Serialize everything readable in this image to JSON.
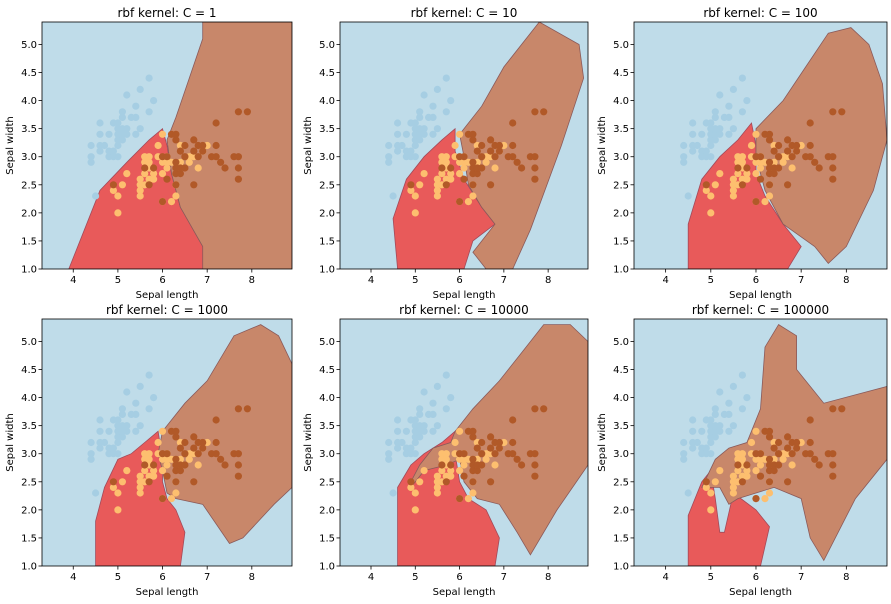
{
  "chart_data": [
    {
      "type": "scatter",
      "title": "rbf kernel: C = 1",
      "xlabel": "Sepal length",
      "ylabel": "Sepal width",
      "xlim": [
        3.3,
        8.9
      ],
      "ylim": [
        1.0,
        5.4
      ],
      "xticks": [
        "4",
        "5",
        "6",
        "7",
        "8"
      ],
      "yticks": [
        "1.0",
        "1.5",
        "2.0",
        "2.5",
        "3.0",
        "3.5",
        "4.0",
        "4.5",
        "5.0"
      ]
    },
    {
      "type": "scatter",
      "title": "rbf kernel: C = 10",
      "xlabel": "Sepal length",
      "ylabel": "Sepal width",
      "xlim": [
        3.3,
        8.9
      ],
      "ylim": [
        1.0,
        5.4
      ],
      "xticks": [
        "4",
        "5",
        "6",
        "7",
        "8"
      ],
      "yticks": [
        "1.0",
        "1.5",
        "2.0",
        "2.5",
        "3.0",
        "3.5",
        "4.0",
        "4.5",
        "5.0"
      ]
    },
    {
      "type": "scatter",
      "title": "rbf kernel: C = 100",
      "xlabel": "Sepal length",
      "ylabel": "Sepal width",
      "xlim": [
        3.3,
        8.9
      ],
      "ylim": [
        1.0,
        5.4
      ],
      "xticks": [
        "4",
        "5",
        "6",
        "7",
        "8"
      ],
      "yticks": [
        "1.0",
        "1.5",
        "2.0",
        "2.5",
        "3.0",
        "3.5",
        "4.0",
        "4.5",
        "5.0"
      ]
    },
    {
      "type": "scatter",
      "title": "rbf kernel: C = 1000",
      "xlabel": "Sepal length",
      "ylabel": "Sepal width",
      "xlim": [
        3.3,
        8.9
      ],
      "ylim": [
        1.0,
        5.4
      ],
      "xticks": [
        "4",
        "5",
        "6",
        "7",
        "8"
      ],
      "yticks": [
        "1.0",
        "1.5",
        "2.0",
        "2.5",
        "3.0",
        "3.5",
        "4.0",
        "4.5",
        "5.0"
      ]
    },
    {
      "type": "scatter",
      "title": "rbf kernel: C = 10000",
      "xlabel": "Sepal length",
      "ylabel": "Sepal width",
      "xlim": [
        3.3,
        8.9
      ],
      "ylim": [
        1.0,
        5.4
      ],
      "xticks": [
        "4",
        "5",
        "6",
        "7",
        "8"
      ],
      "yticks": [
        "1.0",
        "1.5",
        "2.0",
        "2.5",
        "3.0",
        "3.5",
        "4.0",
        "4.5",
        "5.0"
      ]
    },
    {
      "type": "scatter",
      "title": "rbf kernel: C = 100000",
      "xlabel": "Sepal length",
      "ylabel": "Sepal width",
      "xlim": [
        3.3,
        8.9
      ],
      "ylim": [
        1.0,
        5.4
      ],
      "xticks": [
        "4",
        "5",
        "6",
        "7",
        "8"
      ],
      "yticks": [
        "1.0",
        "1.5",
        "2.0",
        "2.5",
        "3.0",
        "3.5",
        "4.0",
        "4.5",
        "5.0"
      ]
    }
  ],
  "colors": {
    "background_region": "#bfdce9",
    "class_0_region": "#bfdce9",
    "class_1_region": "#e85a5a",
    "class_2_region": "#c8876a",
    "class_0_points": "#a6cee3",
    "class_1_points": "#fdbf6f",
    "class_2_points": "#b15928",
    "axis": "#000000"
  },
  "points": {
    "class_0": [
      [
        4.5,
        2.3
      ],
      [
        4.4,
        2.9
      ],
      [
        4.4,
        3.0
      ],
      [
        4.4,
        3.2
      ],
      [
        4.6,
        3.1
      ],
      [
        4.6,
        3.2
      ],
      [
        4.6,
        3.4
      ],
      [
        4.6,
        3.6
      ],
      [
        4.7,
        3.2
      ],
      [
        4.8,
        3.0
      ],
      [
        4.8,
        3.1
      ],
      [
        4.8,
        3.4
      ],
      [
        4.9,
        3.0
      ],
      [
        4.9,
        3.1
      ],
      [
        4.9,
        3.6
      ],
      [
        5.0,
        3.0
      ],
      [
        5.0,
        3.2
      ],
      [
        5.0,
        3.3
      ],
      [
        5.0,
        3.4
      ],
      [
        5.0,
        3.5
      ],
      [
        5.0,
        3.6
      ],
      [
        5.1,
        3.3
      ],
      [
        5.1,
        3.4
      ],
      [
        5.1,
        3.5
      ],
      [
        5.1,
        3.7
      ],
      [
        5.1,
        3.8
      ],
      [
        5.2,
        3.4
      ],
      [
        5.2,
        3.5
      ],
      [
        5.2,
        4.1
      ],
      [
        5.3,
        3.7
      ],
      [
        5.4,
        3.4
      ],
      [
        5.4,
        3.7
      ],
      [
        5.4,
        3.9
      ],
      [
        5.5,
        3.5
      ],
      [
        5.5,
        4.2
      ],
      [
        5.7,
        3.8
      ],
      [
        5.7,
        4.4
      ],
      [
        5.8,
        4.0
      ]
    ],
    "class_1": [
      [
        4.9,
        2.4
      ],
      [
        5.0,
        2.0
      ],
      [
        5.0,
        2.3
      ],
      [
        5.1,
        2.5
      ],
      [
        5.2,
        2.7
      ],
      [
        5.5,
        2.3
      ],
      [
        5.5,
        2.4
      ],
      [
        5.5,
        2.5
      ],
      [
        5.5,
        2.6
      ],
      [
        5.6,
        2.5
      ],
      [
        5.6,
        2.7
      ],
      [
        5.6,
        2.9
      ],
      [
        5.6,
        3.0
      ],
      [
        5.7,
        2.6
      ],
      [
        5.7,
        2.8
      ],
      [
        5.7,
        2.9
      ],
      [
        5.7,
        3.0
      ],
      [
        5.8,
        2.6
      ],
      [
        5.8,
        2.7
      ],
      [
        5.9,
        3.0
      ],
      [
        5.9,
        3.2
      ],
      [
        6.0,
        2.2
      ],
      [
        6.0,
        2.7
      ],
      [
        6.0,
        2.9
      ],
      [
        6.0,
        3.4
      ],
      [
        6.1,
        2.8
      ],
      [
        6.1,
        2.9
      ],
      [
        6.1,
        3.0
      ],
      [
        6.2,
        2.2
      ],
      [
        6.2,
        2.9
      ],
      [
        6.3,
        2.3
      ],
      [
        6.3,
        2.5
      ],
      [
        6.4,
        2.9
      ],
      [
        6.4,
        3.2
      ],
      [
        6.6,
        2.9
      ],
      [
        6.6,
        3.0
      ],
      [
        6.7,
        3.0
      ],
      [
        6.8,
        2.8
      ],
      [
        6.9,
        3.1
      ],
      [
        7.0,
        3.2
      ]
    ],
    "class_2": [
      [
        4.9,
        2.5
      ],
      [
        5.6,
        2.8
      ],
      [
        5.7,
        2.5
      ],
      [
        5.8,
        2.8
      ],
      [
        6.0,
        2.2
      ],
      [
        6.0,
        3.0
      ],
      [
        6.1,
        2.6
      ],
      [
        6.1,
        3.0
      ],
      [
        6.2,
        3.4
      ],
      [
        6.3,
        2.5
      ],
      [
        6.3,
        2.7
      ],
      [
        6.3,
        2.8
      ],
      [
        6.3,
        2.9
      ],
      [
        6.3,
        3.3
      ],
      [
        6.3,
        3.4
      ],
      [
        6.4,
        2.7
      ],
      [
        6.4,
        2.8
      ],
      [
        6.4,
        3.1
      ],
      [
        6.5,
        3.0
      ],
      [
        6.5,
        3.2
      ],
      [
        6.7,
        2.5
      ],
      [
        6.7,
        3.3
      ],
      [
        6.8,
        3.0
      ],
      [
        6.8,
        3.2
      ],
      [
        6.9,
        3.1
      ],
      [
        7.1,
        3.0
      ],
      [
        7.2,
        3.0
      ],
      [
        7.2,
        3.2
      ],
      [
        7.2,
        3.6
      ],
      [
        7.3,
        2.9
      ],
      [
        7.4,
        2.8
      ],
      [
        7.6,
        3.0
      ],
      [
        7.7,
        2.6
      ],
      [
        7.7,
        2.8
      ],
      [
        7.7,
        3.0
      ],
      [
        7.7,
        3.8
      ],
      [
        7.9,
        3.8
      ],
      [
        6.5,
        2.8
      ],
      [
        6.7,
        3.1
      ],
      [
        6.9,
        3.2
      ]
    ]
  },
  "regions": [
    {
      "red": [
        [
          3.9,
          1.0
        ],
        [
          7.0,
          1.0
        ],
        [
          6.9,
          1.5
        ],
        [
          6.4,
          2.1
        ],
        [
          6.2,
          2.7
        ],
        [
          6.1,
          3.2
        ],
        [
          6.0,
          3.5
        ],
        [
          5.7,
          3.3
        ],
        [
          5.2,
          2.9
        ],
        [
          4.6,
          2.4
        ],
        [
          4.2,
          1.6
        ]
      ],
      "brown": [
        [
          6.9,
          1.0
        ],
        [
          8.9,
          1.0
        ],
        [
          8.9,
          5.4
        ],
        [
          6.9,
          5.4
        ],
        [
          6.9,
          5.1
        ],
        [
          6.6,
          4.4
        ],
        [
          6.3,
          3.7
        ],
        [
          6.1,
          3.3
        ],
        [
          6.2,
          2.7
        ],
        [
          6.4,
          2.1
        ],
        [
          6.9,
          1.4
        ]
      ]
    },
    {
      "red": [
        [
          4.6,
          1.0
        ],
        [
          6.1,
          1.0
        ],
        [
          6.3,
          1.5
        ],
        [
          6.8,
          1.8
        ],
        [
          6.5,
          2.1
        ],
        [
          6.1,
          2.6
        ],
        [
          5.9,
          3.1
        ],
        [
          5.9,
          3.5
        ],
        [
          5.6,
          3.3
        ],
        [
          5.2,
          3.0
        ],
        [
          4.8,
          2.6
        ],
        [
          4.5,
          1.9
        ]
      ],
      "brown": [
        [
          6.3,
          1.3
        ],
        [
          6.8,
          1.8
        ],
        [
          6.5,
          2.1
        ],
        [
          6.2,
          2.5
        ],
        [
          6.1,
          3.0
        ],
        [
          6.0,
          3.4
        ],
        [
          6.5,
          3.9
        ],
        [
          7.0,
          4.6
        ],
        [
          7.8,
          5.4
        ],
        [
          8.7,
          5.0
        ],
        [
          8.8,
          4.4
        ],
        [
          8.3,
          3.2
        ],
        [
          7.6,
          1.7
        ],
        [
          7.2,
          1.0
        ],
        [
          6.6,
          1.0
        ]
      ]
    },
    {
      "red": [
        [
          4.5,
          1.0
        ],
        [
          6.7,
          1.0
        ],
        [
          7.0,
          1.4
        ],
        [
          6.6,
          1.8
        ],
        [
          6.2,
          2.3
        ],
        [
          6.0,
          2.7
        ],
        [
          6.0,
          3.2
        ],
        [
          5.9,
          3.6
        ],
        [
          5.6,
          3.3
        ],
        [
          5.2,
          3.0
        ],
        [
          4.8,
          2.6
        ],
        [
          4.5,
          1.8
        ]
      ],
      "brown": [
        [
          6.6,
          1.8
        ],
        [
          7.3,
          1.4
        ],
        [
          7.6,
          1.1
        ],
        [
          8.0,
          1.4
        ],
        [
          8.6,
          2.4
        ],
        [
          8.9,
          3.3
        ],
        [
          8.8,
          4.3
        ],
        [
          8.5,
          5.0
        ],
        [
          8.1,
          5.3
        ],
        [
          7.6,
          5.2
        ],
        [
          7.1,
          4.6
        ],
        [
          6.6,
          4.0
        ],
        [
          6.0,
          3.5
        ],
        [
          6.0,
          3.0
        ],
        [
          6.2,
          2.4
        ]
      ]
    },
    {
      "red": [
        [
          4.5,
          1.0
        ],
        [
          6.4,
          1.0
        ],
        [
          6.5,
          1.6
        ],
        [
          6.3,
          2.0
        ],
        [
          6.1,
          2.2
        ],
        [
          6.0,
          2.5
        ],
        [
          6.0,
          2.9
        ],
        [
          5.9,
          3.4
        ],
        [
          5.6,
          3.2
        ],
        [
          5.3,
          3.0
        ],
        [
          5.0,
          2.9
        ],
        [
          4.7,
          2.4
        ],
        [
          4.5,
          1.8
        ]
      ],
      "brown": [
        [
          6.3,
          2.2
        ],
        [
          6.9,
          2.1
        ],
        [
          7.5,
          1.4
        ],
        [
          7.8,
          1.5
        ],
        [
          8.5,
          2.1
        ],
        [
          8.9,
          2.4
        ],
        [
          8.9,
          4.6
        ],
        [
          8.6,
          5.1
        ],
        [
          8.2,
          5.3
        ],
        [
          7.6,
          5.1
        ],
        [
          7.0,
          4.3
        ],
        [
          6.5,
          3.9
        ],
        [
          6.0,
          3.4
        ],
        [
          5.9,
          3.0
        ],
        [
          6.0,
          2.7
        ],
        [
          6.1,
          2.3
        ]
      ]
    },
    {
      "red": [
        [
          4.6,
          1.0
        ],
        [
          6.8,
          1.0
        ],
        [
          6.9,
          1.5
        ],
        [
          6.6,
          2.0
        ],
        [
          6.2,
          2.2
        ],
        [
          6.0,
          2.5
        ],
        [
          5.9,
          3.0
        ],
        [
          5.9,
          3.4
        ],
        [
          5.6,
          3.2
        ],
        [
          5.2,
          3.0
        ],
        [
          4.9,
          2.8
        ],
        [
          4.6,
          2.4
        ]
      ],
      "brown": [
        [
          4.9,
          2.5
        ],
        [
          5.1,
          2.8
        ],
        [
          5.4,
          3.1
        ],
        [
          5.8,
          3.2
        ],
        [
          5.9,
          3.4
        ],
        [
          6.3,
          3.8
        ],
        [
          6.9,
          4.3
        ],
        [
          7.4,
          4.8
        ],
        [
          7.9,
          5.3
        ],
        [
          8.5,
          5.3
        ],
        [
          8.9,
          5.0
        ],
        [
          8.9,
          2.8
        ],
        [
          8.2,
          2.0
        ],
        [
          7.6,
          1.2
        ],
        [
          7.3,
          1.6
        ],
        [
          6.9,
          2.1
        ],
        [
          6.4,
          2.2
        ],
        [
          6.1,
          2.5
        ],
        [
          6.0,
          2.9
        ],
        [
          5.7,
          2.8
        ],
        [
          5.2,
          2.7
        ],
        [
          4.9,
          2.4
        ]
      ]
    },
    {
      "red": [
        [
          4.5,
          1.0
        ],
        [
          6.1,
          1.0
        ],
        [
          6.3,
          1.7
        ],
        [
          6.0,
          2.0
        ],
        [
          5.5,
          2.3
        ],
        [
          5.3,
          1.6
        ],
        [
          5.2,
          1.6
        ],
        [
          5.1,
          2.2
        ],
        [
          5.0,
          2.7
        ],
        [
          4.8,
          2.5
        ],
        [
          4.5,
          1.9
        ]
      ],
      "brown": [
        [
          4.8,
          2.4
        ],
        [
          5.1,
          2.9
        ],
        [
          5.4,
          3.1
        ],
        [
          5.8,
          3.2
        ],
        [
          6.1,
          3.8
        ],
        [
          6.2,
          4.9
        ],
        [
          6.5,
          5.3
        ],
        [
          6.9,
          5.1
        ],
        [
          6.9,
          4.5
        ],
        [
          7.5,
          3.9
        ],
        [
          8.9,
          4.2
        ],
        [
          8.9,
          2.9
        ],
        [
          8.2,
          2.2
        ],
        [
          7.5,
          1.1
        ],
        [
          7.2,
          1.5
        ],
        [
          7.0,
          2.2
        ],
        [
          6.4,
          2.4
        ],
        [
          6.0,
          2.3
        ],
        [
          5.6,
          2.2
        ],
        [
          5.4,
          2.1
        ],
        [
          5.2,
          2.4
        ]
      ]
    }
  ]
}
